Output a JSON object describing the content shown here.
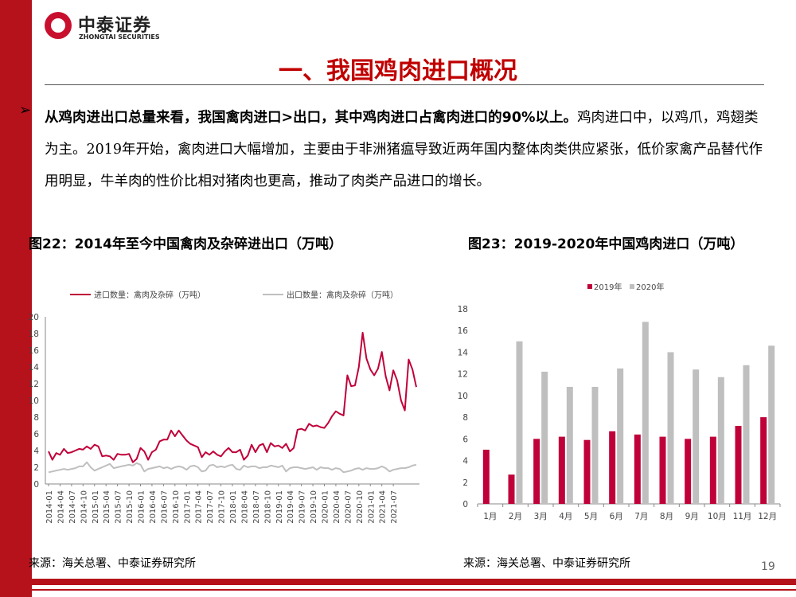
{
  "brand": {
    "name_cn": "中泰证券",
    "name_en": "ZHONGTAI SECURITIES"
  },
  "slide_title": "一、我国鸡肉进口概况",
  "bullet": {
    "bold": "从鸡肉进出口总量来看，我国禽肉进口>出口，其中鸡肉进口占禽肉进口的90%以上。",
    "rest": "鸡肉进口中，以鸡爪，鸡翅类为主。2019年开始，禽肉进口大幅增加，主要由于非洲猪瘟导致近两年国内整体肉类供应紧张，低价家禽产品替代作用明显，牛羊肉的性价比相对猪肉也更高，推动了肉类产品进口的增长。"
  },
  "fig22_title": "图22：2014年至今中国禽肉及杂碎进出口（万吨）",
  "fig23_title": "图23：2019-2020年中国鸡肉进口（万吨）",
  "source_left": "来源：海关总署、中泰证券研究所",
  "source_right": "来源：海关总署、中泰证券研究所",
  "page_number": "19",
  "colors": {
    "red": "#c00039",
    "gray": "#bfbfbf",
    "accent": "#b5121b"
  },
  "chart_data": [
    {
      "type": "line",
      "ylim": [
        0,
        20
      ],
      "yticks": [
        0,
        2,
        4,
        6,
        8,
        10,
        12,
        14,
        16,
        18,
        20
      ],
      "xtick_labels": [
        "2014-01",
        "2014-04",
        "2014-07",
        "2014-10",
        "2015-01",
        "2015-04",
        "2015-07",
        "2015-10",
        "2016-01",
        "2016-04",
        "2016-07",
        "2016-10",
        "2017-01",
        "2017-04",
        "2017-07",
        "2017-10",
        "2018-01",
        "2018-04",
        "2018-07",
        "2018-10",
        "2019-01",
        "2019-04",
        "2019-07",
        "2019-10",
        "2020-01",
        "2020-04",
        "2020-07",
        "2020-10",
        "2021-01",
        "2021-04",
        "2021-07"
      ],
      "series": [
        {
          "name": "进口数量：禽肉及杂碎（万吨）",
          "color": "#c00039",
          "values": [
            3.9,
            2.9,
            3.7,
            3.5,
            4.2,
            3.7,
            3.8,
            4.0,
            4.2,
            4.1,
            4.5,
            4.2,
            4.7,
            4.5,
            3.3,
            3.4,
            3.3,
            2.9,
            3.6,
            3.5,
            3.5,
            3.6,
            2.6,
            3.0,
            4.3,
            3.9,
            2.9,
            3.8,
            4.1,
            5.1,
            5.3,
            5.3,
            6.4,
            5.7,
            6.4,
            5.8,
            5.2,
            4.8,
            4.6,
            4.4,
            3.2,
            3.8,
            3.5,
            3.9,
            3.5,
            3.3,
            3.9,
            4.3,
            3.8,
            3.8,
            4.1,
            2.9,
            3.4,
            4.7,
            3.8,
            4.6,
            4.8,
            3.8,
            4.9,
            4.5,
            4.6,
            4.3,
            4.8,
            3.9,
            4.3,
            6.5,
            6.6,
            6.4,
            7.2,
            6.9,
            7.0,
            6.8,
            6.7,
            7.3,
            8.1,
            8.7,
            8.4,
            8.2,
            13.0,
            11.7,
            11.8,
            14.0,
            18.1,
            15.0,
            13.7,
            13.0,
            13.8,
            15.8,
            12.9,
            11.2,
            13.6,
            12.4,
            10.0,
            8.8,
            14.9,
            13.7,
            11.6
          ]
        },
        {
          "name": "出口数量：禽肉及杂碎（万吨）",
          "color": "#bfbfbf",
          "values": [
            1.4,
            1.5,
            1.6,
            1.7,
            1.8,
            1.7,
            1.8,
            1.9,
            2.1,
            2.1,
            2.6,
            2.0,
            1.6,
            1.8,
            2.0,
            2.2,
            2.4,
            1.9,
            2.0,
            2.1,
            2.2,
            2.3,
            2.2,
            2.5,
            2.3,
            1.5,
            1.8,
            1.9,
            2.0,
            2.1,
            1.9,
            2.0,
            1.8,
            2.0,
            2.1,
            2.0,
            1.7,
            2.1,
            2.2,
            2.0,
            1.5,
            1.6,
            2.2,
            2.3,
            2.0,
            2.1,
            2.0,
            2.2,
            2.3,
            1.8,
            1.7,
            2.2,
            2.0,
            2.1,
            2.1,
            1.9,
            2.0,
            2.0,
            2.2,
            2.1,
            2.0,
            2.2,
            1.5,
            1.9,
            2.0,
            2.0,
            1.9,
            1.8,
            1.9,
            2.0,
            1.7,
            2.0,
            1.9,
            1.9,
            1.7,
            1.9,
            1.8,
            1.4,
            1.5,
            1.6,
            1.8,
            1.9,
            1.7,
            1.9,
            1.8,
            1.8,
            1.9,
            2.1,
            1.9,
            1.5,
            1.7,
            1.8,
            1.9,
            1.9,
            2.0,
            2.2,
            2.3
          ]
        }
      ]
    },
    {
      "type": "bar",
      "ylim": [
        0,
        18
      ],
      "yticks": [
        0,
        2,
        4,
        6,
        8,
        10,
        12,
        14,
        16,
        18
      ],
      "categories": [
        "1月",
        "2月",
        "3月",
        "4月",
        "5月",
        "6月",
        "7月",
        "8月",
        "9月",
        "10月",
        "11月",
        "12月"
      ],
      "series": [
        {
          "name": "2019年",
          "color": "#c00039",
          "values": [
            5.0,
            2.7,
            6.0,
            6.2,
            5.9,
            6.7,
            6.4,
            6.2,
            6.0,
            6.2,
            7.2,
            8.0
          ]
        },
        {
          "name": "2020年",
          "color": "#bfbfbf",
          "values": [
            null,
            15.0,
            12.2,
            10.8,
            10.8,
            12.5,
            16.8,
            14.0,
            12.4,
            11.7,
            12.8,
            14.6
          ]
        }
      ]
    }
  ]
}
